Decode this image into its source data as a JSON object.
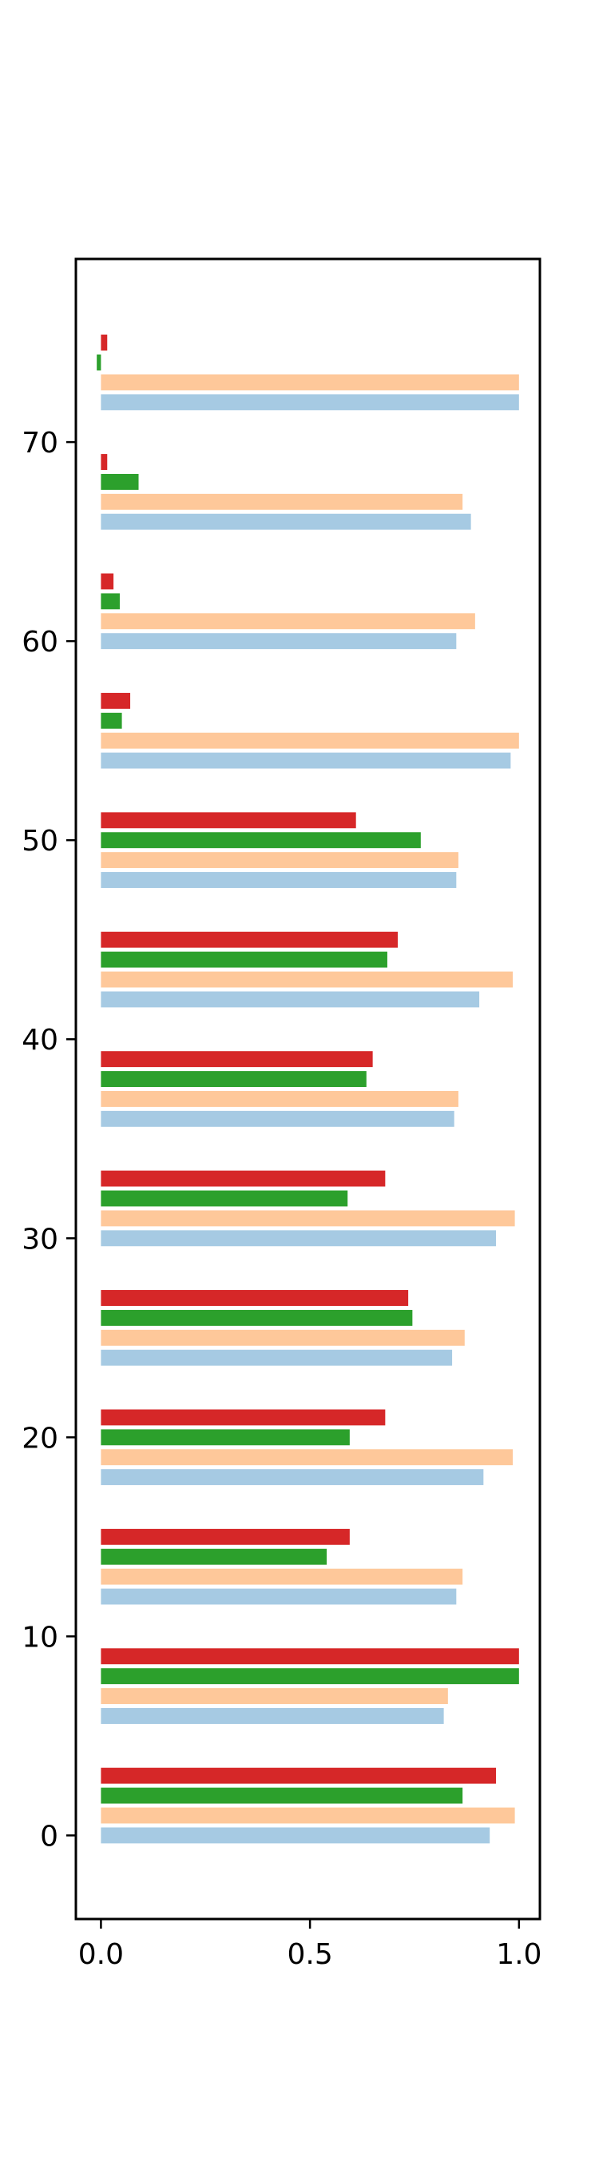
{
  "chart_data": {
    "type": "bar",
    "orientation": "horizontal",
    "title": "",
    "xlabel": "",
    "ylabel": "",
    "xlim": [
      -0.06,
      1.05
    ],
    "ylim": [
      -4.2,
      79.2
    ],
    "x_ticks": [
      {
        "value": 0.0,
        "label": "0.0"
      },
      {
        "value": 0.5,
        "label": "0.5"
      },
      {
        "value": 1.0,
        "label": "1.0"
      }
    ],
    "y_ticks": [
      {
        "value": 0,
        "label": "0"
      },
      {
        "value": 10,
        "label": "10"
      },
      {
        "value": 20,
        "label": "20"
      },
      {
        "value": 30,
        "label": "30"
      },
      {
        "value": 40,
        "label": "40"
      },
      {
        "value": 50,
        "label": "50"
      },
      {
        "value": 60,
        "label": "60"
      },
      {
        "value": 70,
        "label": "70"
      }
    ],
    "grid": false,
    "legend": null,
    "group_positions": [
      0,
      6,
      12,
      18,
      24,
      30,
      36,
      42,
      48,
      54,
      60,
      66,
      72
    ],
    "series": [
      {
        "color": "#a6cae3",
        "offset": 0,
        "values": [
          0.93,
          0.82,
          0.85,
          0.915,
          0.84,
          0.945,
          0.845,
          0.905,
          0.85,
          0.98,
          0.85,
          0.885,
          1.0
        ]
      },
      {
        "color": "#fec89a",
        "offset": 1,
        "values": [
          0.99,
          0.83,
          0.865,
          0.985,
          0.87,
          0.99,
          0.855,
          0.985,
          0.855,
          1.0,
          0.895,
          0.865,
          1.0
        ]
      },
      {
        "color": "#2ca02c",
        "offset": 2,
        "values": [
          0.865,
          1.0,
          0.54,
          0.595,
          0.745,
          0.59,
          0.635,
          0.685,
          0.765,
          0.05,
          0.045,
          0.09,
          -0.01
        ]
      },
      {
        "color": "#d62728",
        "offset": 3,
        "values": [
          0.945,
          1.0,
          0.595,
          0.68,
          0.735,
          0.68,
          0.65,
          0.71,
          0.61,
          0.07,
          0.03,
          0.015,
          0.015
        ]
      }
    ]
  }
}
